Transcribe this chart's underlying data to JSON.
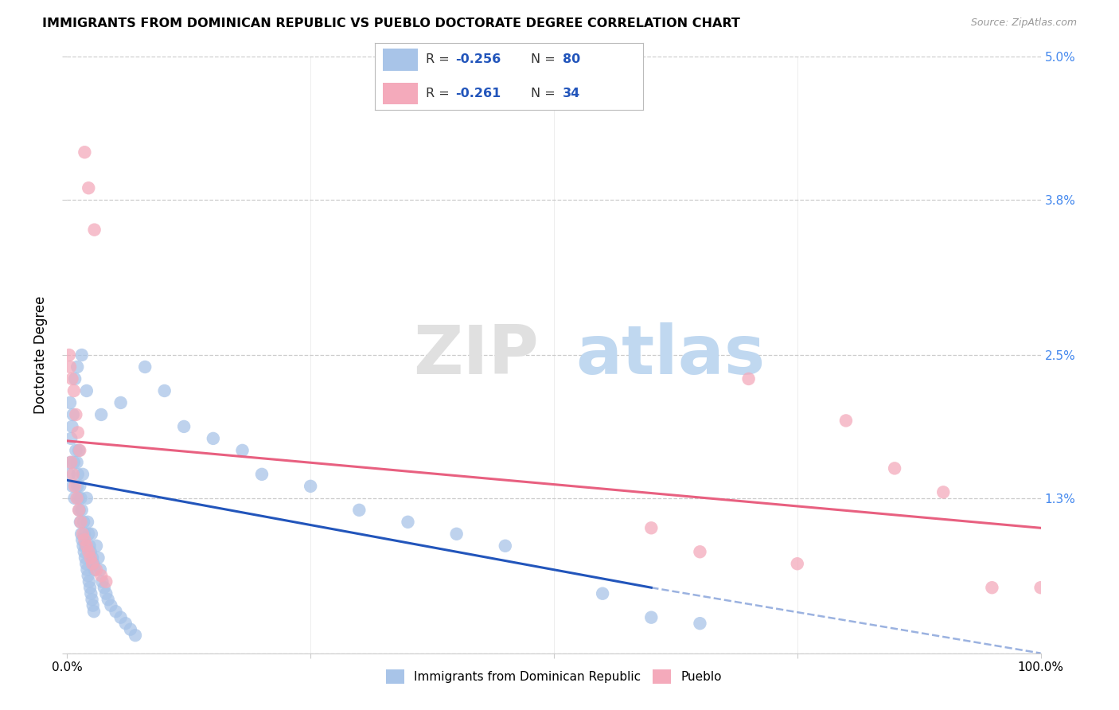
{
  "title": "IMMIGRANTS FROM DOMINICAN REPUBLIC VS PUEBLO DOCTORATE DEGREE CORRELATION CHART",
  "source": "Source: ZipAtlas.com",
  "ylabel": "Doctorate Degree",
  "xlim": [
    0,
    100
  ],
  "ylim": [
    0,
    5.0
  ],
  "yticks": [
    0,
    1.3,
    2.5,
    3.8,
    5.0
  ],
  "ytick_labels_right": [
    "",
    "1.3%",
    "2.5%",
    "3.8%",
    "5.0%"
  ],
  "blue_color": "#A8C4E8",
  "pink_color": "#F4AABB",
  "blue_line_color": "#2255BB",
  "pink_line_color": "#E86080",
  "blue_scatter": [
    [
      0.3,
      2.1
    ],
    [
      0.5,
      1.9
    ],
    [
      0.8,
      2.3
    ],
    [
      0.9,
      1.7
    ],
    [
      1.0,
      1.6
    ],
    [
      1.1,
      1.5
    ],
    [
      1.2,
      1.7
    ],
    [
      1.3,
      1.4
    ],
    [
      1.4,
      1.3
    ],
    [
      1.5,
      1.2
    ],
    [
      1.6,
      1.5
    ],
    [
      1.7,
      1.1
    ],
    [
      1.8,
      1.0
    ],
    [
      1.9,
      0.9
    ],
    [
      2.0,
      1.3
    ],
    [
      2.1,
      1.1
    ],
    [
      2.2,
      1.0
    ],
    [
      2.3,
      0.9
    ],
    [
      2.4,
      0.85
    ],
    [
      2.5,
      1.0
    ],
    [
      2.6,
      0.8
    ],
    [
      2.7,
      0.75
    ],
    [
      2.8,
      0.7
    ],
    [
      3.0,
      0.9
    ],
    [
      3.2,
      0.8
    ],
    [
      3.4,
      0.7
    ],
    [
      3.6,
      0.6
    ],
    [
      3.8,
      0.55
    ],
    [
      4.0,
      0.5
    ],
    [
      4.2,
      0.45
    ],
    [
      4.5,
      0.4
    ],
    [
      5.0,
      0.35
    ],
    [
      5.5,
      0.3
    ],
    [
      6.0,
      0.25
    ],
    [
      6.5,
      0.2
    ],
    [
      7.0,
      0.15
    ],
    [
      0.4,
      1.8
    ],
    [
      0.6,
      2.0
    ],
    [
      0.7,
      1.6
    ],
    [
      1.05,
      1.4
    ],
    [
      1.15,
      1.3
    ],
    [
      1.25,
      1.2
    ],
    [
      1.35,
      1.1
    ],
    [
      1.45,
      1.0
    ],
    [
      1.55,
      0.95
    ],
    [
      1.65,
      0.9
    ],
    [
      1.75,
      0.85
    ],
    [
      1.85,
      0.8
    ],
    [
      1.95,
      0.75
    ],
    [
      2.05,
      0.7
    ],
    [
      2.15,
      0.65
    ],
    [
      2.25,
      0.6
    ],
    [
      2.35,
      0.55
    ],
    [
      2.45,
      0.5
    ],
    [
      2.55,
      0.45
    ],
    [
      2.65,
      0.4
    ],
    [
      2.75,
      0.35
    ],
    [
      0.2,
      1.5
    ],
    [
      0.35,
      1.6
    ],
    [
      0.55,
      1.4
    ],
    [
      0.75,
      1.3
    ],
    [
      1.05,
      2.4
    ],
    [
      1.5,
      2.5
    ],
    [
      2.0,
      2.2
    ],
    [
      3.5,
      2.0
    ],
    [
      5.5,
      2.1
    ],
    [
      8.0,
      2.4
    ],
    [
      10.0,
      2.2
    ],
    [
      12.0,
      1.9
    ],
    [
      15.0,
      1.8
    ],
    [
      18.0,
      1.7
    ],
    [
      20.0,
      1.5
    ],
    [
      25.0,
      1.4
    ],
    [
      30.0,
      1.2
    ],
    [
      35.0,
      1.1
    ],
    [
      40.0,
      1.0
    ],
    [
      45.0,
      0.9
    ],
    [
      55.0,
      0.5
    ],
    [
      60.0,
      0.3
    ],
    [
      65.0,
      0.25
    ]
  ],
  "pink_scatter": [
    [
      0.2,
      2.5
    ],
    [
      0.3,
      2.4
    ],
    [
      0.5,
      2.3
    ],
    [
      0.7,
      2.2
    ],
    [
      0.9,
      2.0
    ],
    [
      1.1,
      1.85
    ],
    [
      1.3,
      1.7
    ],
    [
      1.8,
      4.2
    ],
    [
      2.2,
      3.9
    ],
    [
      2.8,
      3.55
    ],
    [
      0.4,
      1.6
    ],
    [
      0.6,
      1.5
    ],
    [
      0.8,
      1.4
    ],
    [
      1.0,
      1.3
    ],
    [
      1.2,
      1.2
    ],
    [
      1.4,
      1.1
    ],
    [
      1.6,
      1.0
    ],
    [
      1.8,
      0.95
    ],
    [
      2.0,
      0.9
    ],
    [
      2.2,
      0.85
    ],
    [
      2.4,
      0.8
    ],
    [
      2.6,
      0.75
    ],
    [
      3.0,
      0.7
    ],
    [
      3.5,
      0.65
    ],
    [
      4.0,
      0.6
    ],
    [
      70.0,
      2.3
    ],
    [
      80.0,
      1.95
    ],
    [
      85.0,
      1.55
    ],
    [
      90.0,
      1.35
    ],
    [
      60.0,
      1.05
    ],
    [
      65.0,
      0.85
    ],
    [
      75.0,
      0.75
    ],
    [
      95.0,
      0.55
    ],
    [
      100.0,
      0.55
    ]
  ],
  "blue_trend": {
    "x_start": 0,
    "x_end": 60,
    "y_start": 1.45,
    "y_end": 0.55
  },
  "blue_dash": {
    "x_start": 60,
    "x_end": 100,
    "y_start": 0.55,
    "y_end": 0.0
  },
  "pink_trend": {
    "x_start": 0,
    "x_end": 100,
    "y_start": 1.78,
    "y_end": 1.05
  }
}
